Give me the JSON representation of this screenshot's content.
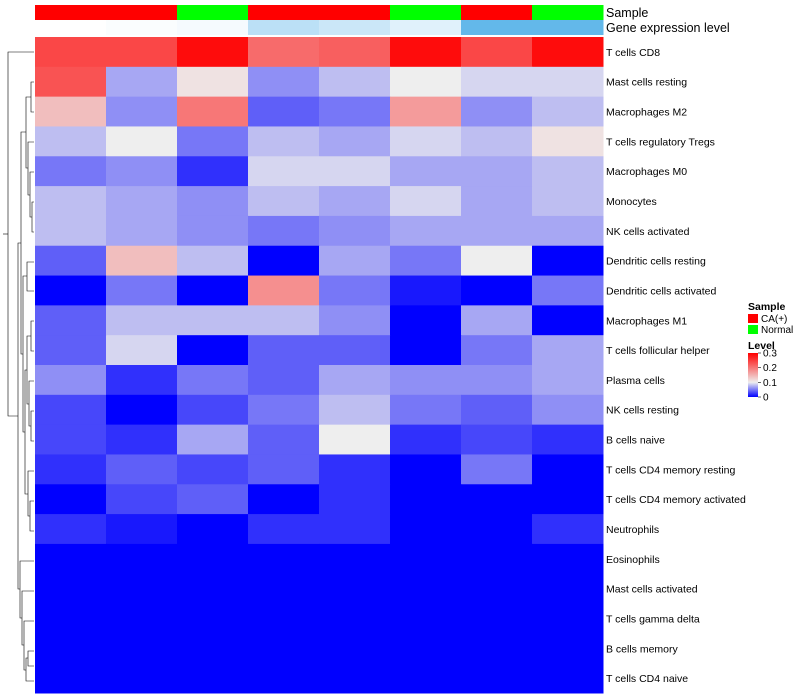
{
  "chart_data": {
    "type": "heatmap",
    "annotation_rows": [
      {
        "name": "Sample",
        "values": [
          "CA(+)",
          "CA(+)",
          "Normal",
          "CA(+)",
          "CA(+)",
          "Normal",
          "CA(+)",
          "Normal"
        ]
      },
      {
        "name": "Gene expression level",
        "values": [
          0.0,
          0.01,
          0.02,
          0.13,
          0.1,
          0.06,
          0.3,
          0.3
        ]
      }
    ],
    "rows": [
      "T cells CD8",
      "Mast cells resting",
      "Macrophages M2",
      "T cells regulatory  Tregs",
      "Macrophages M0",
      "Monocytes",
      "NK cells activated",
      "Dendritic cells resting",
      "Dendritic cells activated",
      "Macrophages M1",
      "T cells follicular helper",
      "Plasma cells",
      "NK cells resting",
      "B cells naive",
      "T cells CD4 memory resting",
      "T cells CD4 memory activated",
      "Neutrophils",
      "Eosinophils",
      "Mast cells activated",
      "T cells gamma delta",
      "B cells memory",
      "T cells CD4 naive"
    ],
    "values": [
      [
        0.24,
        0.24,
        0.29,
        0.21,
        0.22,
        0.29,
        0.24,
        0.29
      ],
      [
        0.23,
        0.07,
        0.11,
        0.06,
        0.08,
        0.1,
        0.09,
        0.09
      ],
      [
        0.14,
        0.06,
        0.2,
        0.04,
        0.05,
        0.17,
        0.06,
        0.08
      ],
      [
        0.08,
        0.1,
        0.05,
        0.08,
        0.07,
        0.09,
        0.08,
        0.11
      ],
      [
        0.05,
        0.06,
        0.02,
        0.09,
        0.09,
        0.07,
        0.07,
        0.08
      ],
      [
        0.08,
        0.07,
        0.06,
        0.08,
        0.07,
        0.09,
        0.07,
        0.08
      ],
      [
        0.08,
        0.07,
        0.06,
        0.05,
        0.06,
        0.07,
        0.07,
        0.07
      ],
      [
        0.04,
        0.14,
        0.08,
        0.0,
        0.07,
        0.05,
        0.1,
        0.0
      ],
      [
        0.0,
        0.05,
        0.0,
        0.18,
        0.05,
        0.01,
        0.0,
        0.05
      ],
      [
        0.04,
        0.08,
        0.08,
        0.08,
        0.06,
        0.0,
        0.07,
        0.0
      ],
      [
        0.04,
        0.09,
        0.0,
        0.04,
        0.04,
        0.0,
        0.05,
        0.07
      ],
      [
        0.06,
        0.02,
        0.05,
        0.04,
        0.07,
        0.06,
        0.06,
        0.07
      ],
      [
        0.03,
        0.0,
        0.03,
        0.05,
        0.08,
        0.05,
        0.04,
        0.06
      ],
      [
        0.03,
        0.02,
        0.07,
        0.04,
        0.1,
        0.02,
        0.03,
        0.02
      ],
      [
        0.02,
        0.04,
        0.03,
        0.04,
        0.02,
        0.0,
        0.05,
        0.0
      ],
      [
        0.0,
        0.03,
        0.04,
        0.0,
        0.02,
        0.0,
        0.0,
        0.0
      ],
      [
        0.02,
        0.01,
        0.0,
        0.02,
        0.02,
        0.0,
        0.0,
        0.02
      ],
      [
        0.0,
        0.0,
        0.0,
        0.0,
        0.0,
        0.0,
        0.0,
        0.0
      ],
      [
        0.0,
        0.0,
        0.0,
        0.0,
        0.0,
        0.0,
        0.0,
        0.0
      ],
      [
        0.0,
        0.0,
        0.0,
        0.0,
        0.0,
        0.0,
        0.0,
        0.0
      ],
      [
        0.0,
        0.0,
        0.0,
        0.0,
        0.0,
        0.0,
        0.0,
        0.0
      ],
      [
        0.0,
        0.0,
        0.0,
        0.0,
        0.0,
        0.0,
        0.0,
        0.0
      ]
    ],
    "color_scale": {
      "min": 0,
      "max": 0.3,
      "stops": [
        {
          "value": 0,
          "color": "#0000ff"
        },
        {
          "value": 0.1,
          "color": "#eeeeee"
        },
        {
          "value": 0.3,
          "color": "#ff0000"
        }
      ]
    },
    "expression_colors": [
      {
        "value": 0,
        "color": "#ffffff"
      },
      {
        "value": 0.3,
        "color": "#63b8ea"
      }
    ],
    "legends": [
      {
        "title": "Sample",
        "entries": [
          {
            "label": "CA(+)",
            "color": "#ff0000"
          },
          {
            "label": "Normal",
            "color": "#00ff00"
          }
        ]
      },
      {
        "title": "Level",
        "ticks": [
          "0.3",
          "0.2",
          "0.1",
          "0"
        ],
        "tick_values": [
          0.3,
          0.2,
          0.1,
          0
        ]
      }
    ],
    "row_dendrogram": true
  }
}
